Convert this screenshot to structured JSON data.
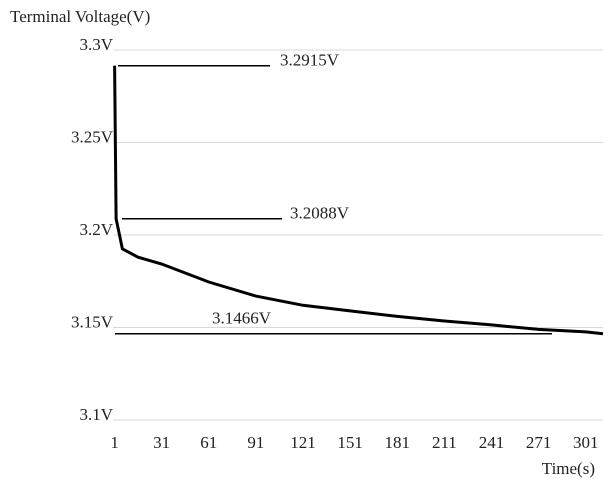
{
  "chart_data": {
    "type": "line",
    "ylabel": "Terminal Voltage(V)",
    "xlabel": "Time(s)",
    "x": [
      1,
      2,
      6,
      16,
      31,
      61,
      91,
      121,
      151,
      181,
      211,
      241,
      271,
      301,
      312
    ],
    "values": [
      3.2915,
      3.2088,
      3.1925,
      3.188,
      3.1843,
      3.1746,
      3.167,
      3.162,
      3.159,
      3.156,
      3.1535,
      3.1514,
      3.149,
      3.1476,
      3.1466
    ],
    "color": "#000000",
    "xlim": [
      0,
      312
    ],
    "xticks": [
      1,
      31,
      61,
      91,
      121,
      151,
      181,
      211,
      241,
      271,
      301
    ],
    "ylim": [
      3.1,
      3.3
    ],
    "yticks": [
      {
        "value": 3.1,
        "label": "3.1V"
      },
      {
        "value": 3.15,
        "label": "3.15V"
      },
      {
        "value": 3.2,
        "label": "3.2V"
      },
      {
        "value": 3.25,
        "label": "3.25V"
      },
      {
        "value": 3.3,
        "label": "3.3V"
      }
    ],
    "grid": true,
    "annotations": [
      {
        "value": 3.2915,
        "label": "3.2915V"
      },
      {
        "value": 3.2088,
        "label": "3.2088V"
      },
      {
        "value": 3.1466,
        "label": "3.1466V"
      }
    ]
  }
}
